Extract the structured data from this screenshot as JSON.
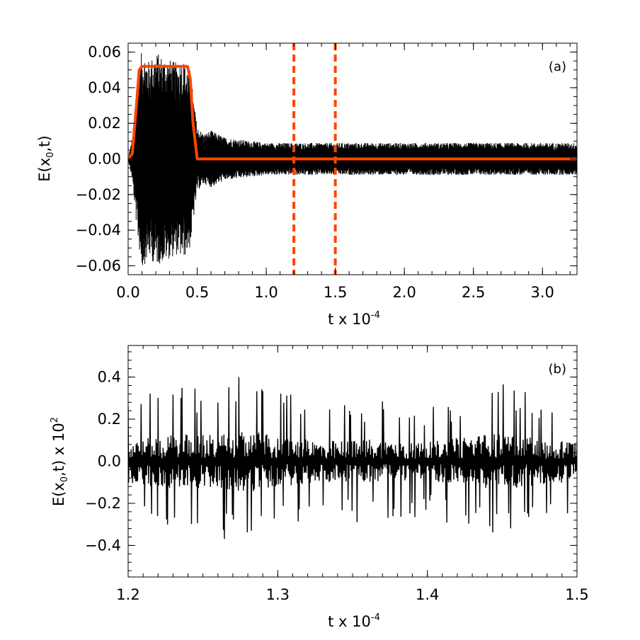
{
  "chart_data": [
    {
      "panel": "(a)",
      "type": "line",
      "xlabel_base": "t x 10",
      "xlabel_exp": "-4",
      "ylabel_pre": "E(x",
      "ylabel_sub": "0",
      "ylabel_post": ",t)",
      "xlim": [
        0.0,
        3.25
      ],
      "ylim": [
        -0.065,
        0.065
      ],
      "xticks": [
        0.0,
        0.5,
        1.0,
        1.5,
        2.0,
        2.5,
        3.0
      ],
      "xtick_labels": [
        "0.0",
        "0.5",
        "1.0",
        "1.5",
        "2.0",
        "2.5",
        "3.0"
      ],
      "yticks": [
        -0.06,
        -0.04,
        -0.02,
        0.0,
        0.02,
        0.04,
        0.06
      ],
      "ytick_labels": [
        "−0.06",
        "−0.04",
        "−0.02",
        "0.00",
        "0.02",
        "0.04",
        "0.06"
      ],
      "series": [
        {
          "color": "#000000",
          "style": "oscillating signal",
          "envelope": [
            [
              0.0,
              0.0
            ],
            [
              0.03,
              0.012
            ],
            [
              0.07,
              0.045
            ],
            [
              0.1,
              0.062
            ],
            [
              0.15,
              0.055
            ],
            [
              0.2,
              0.06
            ],
            [
              0.25,
              0.058
            ],
            [
              0.3,
              0.056
            ],
            [
              0.35,
              0.054
            ],
            [
              0.4,
              0.056
            ],
            [
              0.45,
              0.05
            ],
            [
              0.48,
              0.03
            ],
            [
              0.5,
              0.018
            ],
            [
              0.55,
              0.014
            ],
            [
              0.6,
              0.016
            ],
            [
              0.7,
              0.012
            ],
            [
              0.8,
              0.011
            ],
            [
              1.0,
              0.009
            ],
            [
              1.5,
              0.009
            ],
            [
              2.0,
              0.009
            ],
            [
              2.5,
              0.009
            ],
            [
              3.25,
              0.009
            ]
          ]
        },
        {
          "color": "#ff4500",
          "style": "solid",
          "points": [
            [
              0.0,
              0.0
            ],
            [
              0.03,
              0.003
            ],
            [
              0.06,
              0.03
            ],
            [
              0.08,
              0.05
            ],
            [
              0.1,
              0.052
            ],
            [
              0.43,
              0.052
            ],
            [
              0.45,
              0.045
            ],
            [
              0.47,
              0.02
            ],
            [
              0.5,
              0.0
            ],
            [
              3.25,
              0.0
            ]
          ]
        }
      ],
      "vlines": [
        1.2,
        1.5
      ],
      "vline_color": "#ff4500"
    },
    {
      "panel": "(b)",
      "type": "line",
      "xlabel_base": "t x 10",
      "xlabel_exp": "-4",
      "ylabel_pre": "E(x",
      "ylabel_sub": "0",
      "ylabel_post": ",t) x 10",
      "ylabel_exp": "2",
      "xlim": [
        1.2,
        1.5
      ],
      "ylim": [
        -0.55,
        0.55
      ],
      "xticks": [
        1.2,
        1.3,
        1.4,
        1.5
      ],
      "xtick_labels": [
        "1.2",
        "1.3",
        "1.4",
        "1.5"
      ],
      "yticks": [
        -0.4,
        -0.2,
        0.0,
        0.2,
        0.4
      ],
      "ytick_labels": [
        "−0.4",
        "−0.2",
        "0.0",
        "0.2",
        "0.4"
      ],
      "series": [
        {
          "color": "#000000",
          "style": "oscillating signal",
          "envelope": [
            [
              1.2,
              0.3
            ],
            [
              1.22,
              0.35
            ],
            [
              1.24,
              0.38
            ],
            [
              1.26,
              0.36
            ],
            [
              1.28,
              0.42
            ],
            [
              1.3,
              0.35
            ],
            [
              1.32,
              0.3
            ],
            [
              1.34,
              0.28
            ],
            [
              1.36,
              0.3
            ],
            [
              1.38,
              0.28
            ],
            [
              1.4,
              0.26
            ],
            [
              1.42,
              0.32
            ],
            [
              1.44,
              0.38
            ],
            [
              1.46,
              0.36
            ],
            [
              1.48,
              0.3
            ],
            [
              1.5,
              0.28
            ]
          ]
        }
      ]
    }
  ]
}
